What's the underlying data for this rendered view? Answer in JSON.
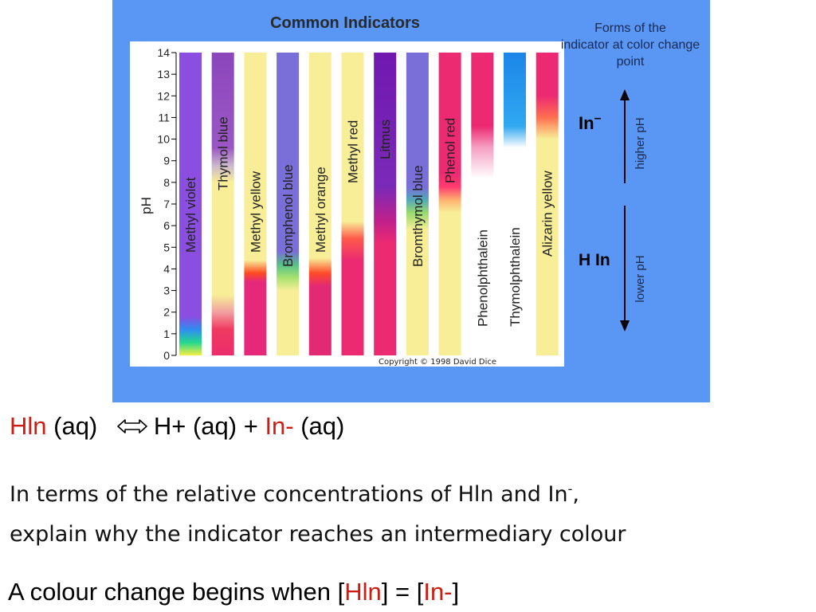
{
  "chart_data": {
    "type": "bar",
    "title": "Common Indicators",
    "ylabel": "pH",
    "ylim": [
      0,
      14
    ],
    "yticks": [
      "0",
      "1",
      "2",
      "3",
      "4",
      "5",
      "6",
      "7",
      "8",
      "9",
      "10",
      "11",
      "12",
      "13",
      "14"
    ],
    "indicators": [
      {
        "name": "Methyl violet",
        "stops": [
          [
            0,
            "#f8ee40"
          ],
          [
            0.6,
            "#22d890"
          ],
          [
            1.2,
            "#2f8cf2"
          ],
          [
            1.8,
            "#8a4ee0"
          ],
          [
            14,
            "#8a4ee0"
          ]
        ]
      },
      {
        "name": "Thymol blue",
        "stops": [
          [
            0,
            "#ec2c6c"
          ],
          [
            1.2,
            "#ef3a60"
          ],
          [
            2.0,
            "#f2a0a0"
          ],
          [
            2.8,
            "#f8ee98"
          ],
          [
            8.0,
            "#f8ee98"
          ],
          [
            8.8,
            "#c9b6cc"
          ],
          [
            9.6,
            "#9a56c4"
          ],
          [
            14,
            "#8c46bc"
          ]
        ]
      },
      {
        "name": "Methyl yellow",
        "stops": [
          [
            0,
            "#e5287a"
          ],
          [
            3.4,
            "#e5287a"
          ],
          [
            3.8,
            "#ff4a20"
          ],
          [
            4.4,
            "#f8ee98"
          ],
          [
            14,
            "#f8ee98"
          ]
        ]
      },
      {
        "name": "Bromphenol blue",
        "stops": [
          [
            0,
            "#f8ee98"
          ],
          [
            3.0,
            "#f8ee98"
          ],
          [
            3.6,
            "#a8e070"
          ],
          [
            4.2,
            "#54c088"
          ],
          [
            4.8,
            "#7a6ed8"
          ],
          [
            14,
            "#7a6ed8"
          ]
        ]
      },
      {
        "name": "Methyl orange",
        "stops": [
          [
            0,
            "#e22a74"
          ],
          [
            3.2,
            "#e22a74"
          ],
          [
            3.8,
            "#ff4a28"
          ],
          [
            4.5,
            "#f8ee98"
          ],
          [
            14,
            "#f8ee98"
          ]
        ]
      },
      {
        "name": "Methyl red",
        "stops": [
          [
            0,
            "#ec2a72"
          ],
          [
            4.4,
            "#ec2a72"
          ],
          [
            5.4,
            "#ff5a4a"
          ],
          [
            6.2,
            "#f8ee98"
          ],
          [
            14,
            "#f8ee98"
          ]
        ]
      },
      {
        "name": "Litmus",
        "stops": [
          [
            0,
            "#ec2a72"
          ],
          [
            5.2,
            "#ec2a72"
          ],
          [
            6.2,
            "#c0208a"
          ],
          [
            7.8,
            "#7a2ab8"
          ],
          [
            14,
            "#7018b0"
          ]
        ]
      },
      {
        "name": "Bromthymol blue",
        "stops": [
          [
            0,
            "#f8ee98"
          ],
          [
            5.8,
            "#f8ee98"
          ],
          [
            6.6,
            "#98d870"
          ],
          [
            7.2,
            "#54a8b8"
          ],
          [
            7.8,
            "#7a6ed8"
          ],
          [
            14,
            "#7a6ed8"
          ]
        ]
      },
      {
        "name": "Phenol red",
        "stops": [
          [
            0,
            "#f8ee98"
          ],
          [
            6.6,
            "#f8ee98"
          ],
          [
            7.2,
            "#ffb070"
          ],
          [
            7.8,
            "#ff3a70"
          ],
          [
            8.4,
            "#ec2a72"
          ],
          [
            14,
            "#ec2a72"
          ]
        ]
      },
      {
        "name": "Phenolphthalein",
        "stops": [
          [
            0,
            "#ffffff"
          ],
          [
            8.2,
            "#ffffff"
          ],
          [
            9.6,
            "#f6a0c4"
          ],
          [
            10.6,
            "#ec2a72"
          ],
          [
            14,
            "#ec2a72"
          ]
        ]
      },
      {
        "name": "Thymolphthalein",
        "stops": [
          [
            0,
            "#ffffff"
          ],
          [
            9.6,
            "#ffffff"
          ],
          [
            10.6,
            "#30a8f0"
          ],
          [
            14,
            "#1c86e8"
          ]
        ]
      },
      {
        "name": "Alizarin yellow",
        "stops": [
          [
            0,
            "#f8ee98"
          ],
          [
            10.0,
            "#f8ee98"
          ],
          [
            11.0,
            "#ff7050"
          ],
          [
            12.0,
            "#ec2a72"
          ],
          [
            14,
            "#ec2a72"
          ]
        ]
      }
    ],
    "legend_title": "Forms of the indicator at color change point",
    "upper_form": "In",
    "upper_form_sup": "–",
    "upper_arrow_label": "higher pH",
    "lower_form": "H In",
    "lower_arrow_label": "lower pH",
    "copyright": "Copyright © 1998 David Dice"
  },
  "colors": {
    "panel": "#5a96f4",
    "accent_red": "#d01c10"
  },
  "text": {
    "eq_hln": "Hln",
    "eq_aq1": " (aq) ",
    "eq_h": "H+ (aq) + ",
    "eq_in": "In-",
    "eq_aq2": " (aq)",
    "q1_start": "In terms of the relative concentrations of Hln and In",
    "q1_sup": "-",
    "q1_end": ",",
    "q2": "explain why the indicator reaches an intermediary colour",
    "ans_start": "A colour change begins when [",
    "ans_hln": "Hln",
    "ans_mid": "] = [",
    "ans_in": "In-",
    "ans_end": "]"
  }
}
